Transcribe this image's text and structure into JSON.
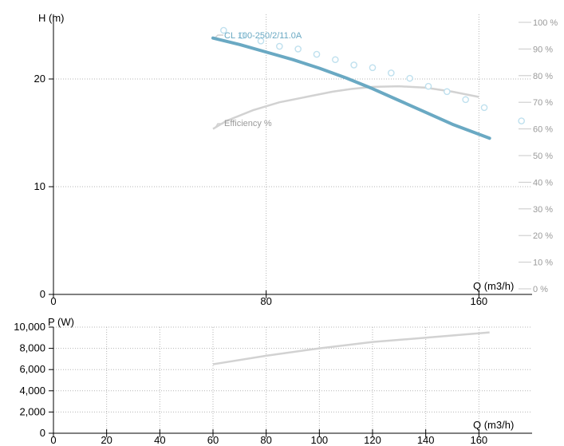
{
  "chart_data": [
    {
      "type": "line",
      "xlabel": "Q (m3/h)",
      "ylabel": "H (m)",
      "xlim": [
        0,
        180
      ],
      "ylim": [
        0,
        26
      ],
      "x_ticks": [
        {
          "value": 0,
          "label": "0"
        },
        {
          "value": 80,
          "label": "80"
        },
        {
          "value": 160,
          "label": "160"
        }
      ],
      "y_ticks": [
        {
          "value": 0,
          "label": "0"
        },
        {
          "value": 10,
          "label": "10"
        },
        {
          "value": 20,
          "label": "20"
        }
      ],
      "y2_ticks": [
        "0 %",
        "10 %",
        "20 %",
        "30 %",
        "40 %",
        "50 %",
        "60 %",
        "70 %",
        "80 %",
        "90 %",
        "100 %"
      ],
      "y2_max": 100,
      "grid": true,
      "colors": {
        "head": "#6aa9c3",
        "markers": "#bfe0ee",
        "efficiency": "#d2d2d2"
      },
      "series": [
        {
          "name": "CL 100-250/2/11.0A",
          "axis": "left",
          "style": "line",
          "x": [
            60,
            70,
            80,
            90,
            100,
            110,
            120,
            130,
            140,
            150,
            164
          ],
          "y": [
            23.8,
            23.2,
            22.5,
            21.8,
            21.0,
            20.1,
            19.1,
            18.0,
            16.9,
            15.8,
            14.5
          ]
        },
        {
          "name": "",
          "axis": "right",
          "style": "markers",
          "x": [
            64,
            71,
            78,
            85,
            92,
            99,
            106,
            113,
            120,
            127,
            134,
            141,
            148,
            155,
            162,
            176
          ],
          "y": [
            97,
            95,
            93,
            91,
            90,
            88,
            86,
            84,
            83,
            81,
            79,
            76,
            74,
            71,
            68,
            63
          ]
        },
        {
          "name": "Efficiency %",
          "axis": "right",
          "style": "line",
          "x": [
            60,
            65,
            75,
            85,
            95,
            105,
            112,
            120,
            130,
            140,
            150,
            160
          ],
          "y": [
            60,
            63,
            67,
            70,
            72,
            74,
            75,
            75.8,
            76,
            75.5,
            74,
            72
          ]
        }
      ]
    },
    {
      "type": "line",
      "xlabel": "Q (m3/h)",
      "ylabel": "P (W)",
      "xlim": [
        0,
        180
      ],
      "ylim": [
        0,
        10000
      ],
      "x_ticks": [
        {
          "value": 0,
          "label": "0"
        },
        {
          "value": 20,
          "label": "20"
        },
        {
          "value": 40,
          "label": "40"
        },
        {
          "value": 60,
          "label": "60"
        },
        {
          "value": 80,
          "label": "80"
        },
        {
          "value": 100,
          "label": "100"
        },
        {
          "value": 120,
          "label": "120"
        },
        {
          "value": 140,
          "label": "140"
        },
        {
          "value": 160,
          "label": "160"
        }
      ],
      "y_ticks": [
        {
          "value": 0,
          "label": "0"
        },
        {
          "value": 2000,
          "label": "2,000"
        },
        {
          "value": 4000,
          "label": "4,000"
        },
        {
          "value": 6000,
          "label": "6,000"
        },
        {
          "value": 8000,
          "label": "8,000"
        },
        {
          "value": 10000,
          "label": "10,000"
        }
      ],
      "grid": true,
      "colors": {
        "power": "#d2d2d2"
      },
      "series": [
        {
          "name": "",
          "style": "line",
          "x": [
            60,
            80,
            100,
            120,
            140,
            164
          ],
          "y": [
            6500,
            7300,
            8000,
            8600,
            9000,
            9500
          ]
        }
      ]
    }
  ]
}
